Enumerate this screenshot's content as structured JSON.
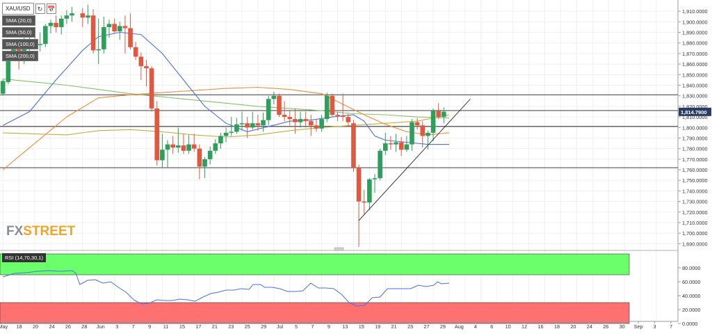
{
  "header": {
    "symbol": "XAU/USD",
    "refresh_icon": "refresh-icon",
    "calendar_icon": "calendar-icon"
  },
  "legend": [
    {
      "label": "SMA (20,0)",
      "color": "#3b5bdb"
    },
    {
      "label": "SMA (50,0)",
      "color": "#f08c3a"
    },
    {
      "label": "SMA (100,0)",
      "color": "#b8a33a"
    },
    {
      "label": "SMA (200,0)",
      "color": "#7fbf5a"
    }
  ],
  "rsi_label": "RSI (14,70,30,1)",
  "watermark": {
    "part1": "FX",
    "part2": "STREET"
  },
  "price_label": "1,814.7900",
  "colors": {
    "up": "#2e9e5b",
    "down": "#e0583f",
    "sma20": "#4a6fe8",
    "sma50": "#f08c3a",
    "sma100": "#c4ae3c",
    "sma200": "#86c266",
    "rsi": "#4a6fe8",
    "overbought": "#6bff6b",
    "oversold": "#ff7070"
  },
  "chart_data": {
    "type": "candlestick",
    "price_axis": {
      "ylim": [
        1685,
        1918
      ],
      "ticks": [
        "1,910.0000",
        "1,900.0000",
        "1,890.0000",
        "1,880.0000",
        "1,870.0000",
        "1,860.0000",
        "1,850.0000",
        "1,840.0000",
        "1,830.0000",
        "1,820.0000",
        "1,810.0000",
        "1,800.0000",
        "1,790.0000",
        "1,780.0000",
        "1,770.0000",
        "1,760.0000",
        "1,750.0000",
        "1,740.0000",
        "1,730.0000",
        "1,720.0000",
        "1,710.0000",
        "1,700.0000",
        "1,690.0000"
      ],
      "tick_values": [
        1910,
        1900,
        1890,
        1880,
        1870,
        1860,
        1850,
        1840,
        1830,
        1820,
        1810,
        1800,
        1790,
        1780,
        1770,
        1760,
        1750,
        1740,
        1730,
        1720,
        1710,
        1700,
        1690
      ]
    },
    "horizontal_lines": [
      1831,
      1816,
      1801,
      1762
    ],
    "x_axis": {
      "labels": [
        "May",
        "18",
        "20",
        "24",
        "26",
        "28",
        "Jun",
        "3",
        "7",
        "9",
        "11",
        "15",
        "17",
        "21",
        "23",
        "25",
        "29",
        "Jul",
        "5",
        "7",
        "9",
        "13",
        "15",
        "19",
        "21",
        "23",
        "27",
        "29",
        "Aug",
        "4",
        "6",
        "10",
        "12",
        "16",
        "18",
        "20",
        "24",
        "26",
        "30",
        "Sep",
        "3",
        "7"
      ],
      "label_pos": [
        0,
        3,
        6,
        9,
        12,
        15,
        18,
        21,
        24,
        27,
        30,
        33,
        36,
        39,
        42,
        45,
        48,
        51,
        54,
        57,
        60,
        63,
        66,
        69,
        72,
        75,
        78,
        81,
        84,
        87,
        90,
        93,
        96,
        99,
        102,
        105,
        108,
        111,
        114,
        117,
        120,
        123
      ],
      "last_candle_pos": 116
    },
    "candles": [
      {
        "pos": 0,
        "o": 1832,
        "h": 1846,
        "l": 1830,
        "c": 1844
      },
      {
        "pos": 1,
        "o": 1843,
        "h": 1869,
        "l": 1841,
        "c": 1867
      },
      {
        "pos": 2,
        "o": 1867,
        "h": 1878,
        "l": 1864,
        "c": 1874
      },
      {
        "pos": 3,
        "o": 1874,
        "h": 1880,
        "l": 1855,
        "c": 1868
      },
      {
        "pos": 4,
        "o": 1868,
        "h": 1885,
        "l": 1860,
        "c": 1877
      },
      {
        "pos": 5,
        "o": 1877,
        "h": 1892,
        "l": 1872,
        "c": 1880
      },
      {
        "pos": 6,
        "o": 1880,
        "h": 1893,
        "l": 1875,
        "c": 1878
      },
      {
        "pos": 7,
        "o": 1878,
        "h": 1890,
        "l": 1872,
        "c": 1879
      },
      {
        "pos": 8,
        "o": 1879,
        "h": 1898,
        "l": 1876,
        "c": 1896
      },
      {
        "pos": 9,
        "o": 1896,
        "h": 1902,
        "l": 1889,
        "c": 1899
      },
      {
        "pos": 10,
        "o": 1899,
        "h": 1906,
        "l": 1890,
        "c": 1895
      },
      {
        "pos": 11,
        "o": 1895,
        "h": 1906,
        "l": 1888,
        "c": 1903
      },
      {
        "pos": 12,
        "o": 1903,
        "h": 1911,
        "l": 1898,
        "c": 1906
      },
      {
        "pos": 13,
        "o": 1906,
        "h": 1914,
        "l": 1900,
        "c": 1908
      },
      {
        "pos": 15,
        "o": 1908,
        "h": 1913,
        "l": 1895,
        "c": 1904
      },
      {
        "pos": 16,
        "o": 1904,
        "h": 1916,
        "l": 1898,
        "c": 1906
      },
      {
        "pos": 17,
        "o": 1906,
        "h": 1912,
        "l": 1870,
        "c": 1873
      },
      {
        "pos": 18,
        "o": 1873,
        "h": 1903,
        "l": 1860,
        "c": 1874
      },
      {
        "pos": 19,
        "o": 1874,
        "h": 1905,
        "l": 1870,
        "c": 1895
      },
      {
        "pos": 20,
        "o": 1895,
        "h": 1902,
        "l": 1885,
        "c": 1898
      },
      {
        "pos": 21,
        "o": 1898,
        "h": 1903,
        "l": 1889,
        "c": 1891
      },
      {
        "pos": 22,
        "o": 1891,
        "h": 1900,
        "l": 1883,
        "c": 1896
      },
      {
        "pos": 23,
        "o": 1896,
        "h": 1906,
        "l": 1870,
        "c": 1894
      },
      {
        "pos": 24,
        "o": 1894,
        "h": 1908,
        "l": 1874,
        "c": 1876
      },
      {
        "pos": 25,
        "o": 1876,
        "h": 1881,
        "l": 1864,
        "c": 1867
      },
      {
        "pos": 26,
        "o": 1867,
        "h": 1871,
        "l": 1845,
        "c": 1858
      },
      {
        "pos": 27,
        "o": 1858,
        "h": 1864,
        "l": 1839,
        "c": 1856
      },
      {
        "pos": 28,
        "o": 1856,
        "h": 1858,
        "l": 1815,
        "c": 1818
      },
      {
        "pos": 29,
        "o": 1818,
        "h": 1825,
        "l": 1764,
        "c": 1769
      },
      {
        "pos": 30,
        "o": 1769,
        "h": 1794,
        "l": 1762,
        "c": 1779
      },
      {
        "pos": 31,
        "o": 1779,
        "h": 1788,
        "l": 1762,
        "c": 1784
      },
      {
        "pos": 32,
        "o": 1784,
        "h": 1792,
        "l": 1775,
        "c": 1781
      },
      {
        "pos": 33,
        "o": 1781,
        "h": 1800,
        "l": 1776,
        "c": 1783
      },
      {
        "pos": 34,
        "o": 1783,
        "h": 1794,
        "l": 1775,
        "c": 1778
      },
      {
        "pos": 35,
        "o": 1778,
        "h": 1793,
        "l": 1775,
        "c": 1784
      },
      {
        "pos": 36,
        "o": 1784,
        "h": 1794,
        "l": 1777,
        "c": 1780
      },
      {
        "pos": 37,
        "o": 1780,
        "h": 1784,
        "l": 1751,
        "c": 1763
      },
      {
        "pos": 38,
        "o": 1763,
        "h": 1772,
        "l": 1752,
        "c": 1770
      },
      {
        "pos": 39,
        "o": 1770,
        "h": 1782,
        "l": 1765,
        "c": 1778
      },
      {
        "pos": 40,
        "o": 1778,
        "h": 1789,
        "l": 1775,
        "c": 1785
      },
      {
        "pos": 41,
        "o": 1785,
        "h": 1795,
        "l": 1780,
        "c": 1792
      },
      {
        "pos": 42,
        "o": 1792,
        "h": 1800,
        "l": 1786,
        "c": 1795
      },
      {
        "pos": 43,
        "o": 1795,
        "h": 1810,
        "l": 1792,
        "c": 1796
      },
      {
        "pos": 44,
        "o": 1796,
        "h": 1809,
        "l": 1794,
        "c": 1803
      },
      {
        "pos": 45,
        "o": 1803,
        "h": 1815,
        "l": 1797,
        "c": 1804
      },
      {
        "pos": 46,
        "o": 1804,
        "h": 1810,
        "l": 1790,
        "c": 1800
      },
      {
        "pos": 47,
        "o": 1800,
        "h": 1815,
        "l": 1798,
        "c": 1804
      },
      {
        "pos": 48,
        "o": 1804,
        "h": 1812,
        "l": 1797,
        "c": 1802
      },
      {
        "pos": 49,
        "o": 1802,
        "h": 1814,
        "l": 1796,
        "c": 1807
      },
      {
        "pos": 50,
        "o": 1807,
        "h": 1830,
        "l": 1802,
        "c": 1827
      },
      {
        "pos": 51,
        "o": 1827,
        "h": 1834,
        "l": 1822,
        "c": 1830
      },
      {
        "pos": 52,
        "o": 1830,
        "h": 1832,
        "l": 1810,
        "c": 1812
      },
      {
        "pos": 53,
        "o": 1812,
        "h": 1825,
        "l": 1806,
        "c": 1810
      },
      {
        "pos": 54,
        "o": 1810,
        "h": 1816,
        "l": 1802,
        "c": 1808
      },
      {
        "pos": 55,
        "o": 1808,
        "h": 1818,
        "l": 1794,
        "c": 1805
      },
      {
        "pos": 56,
        "o": 1805,
        "h": 1815,
        "l": 1800,
        "c": 1808
      },
      {
        "pos": 57,
        "o": 1808,
        "h": 1815,
        "l": 1800,
        "c": 1806
      },
      {
        "pos": 58,
        "o": 1806,
        "h": 1812,
        "l": 1792,
        "c": 1802
      },
      {
        "pos": 59,
        "o": 1802,
        "h": 1808,
        "l": 1796,
        "c": 1799
      },
      {
        "pos": 60,
        "o": 1799,
        "h": 1812,
        "l": 1796,
        "c": 1808
      },
      {
        "pos": 61,
        "o": 1808,
        "h": 1833,
        "l": 1805,
        "c": 1830
      },
      {
        "pos": 62,
        "o": 1830,
        "h": 1832,
        "l": 1810,
        "c": 1812
      },
      {
        "pos": 63,
        "o": 1812,
        "h": 1815,
        "l": 1806,
        "c": 1811
      },
      {
        "pos": 64,
        "o": 1811,
        "h": 1832,
        "l": 1806,
        "c": 1810
      },
      {
        "pos": 65,
        "o": 1810,
        "h": 1813,
        "l": 1801,
        "c": 1805
      },
      {
        "pos": 66,
        "o": 1804,
        "h": 1807,
        "l": 1758,
        "c": 1762
      },
      {
        "pos": 67,
        "o": 1762,
        "h": 1765,
        "l": 1687,
        "c": 1730
      },
      {
        "pos": 68,
        "o": 1730,
        "h": 1741,
        "l": 1718,
        "c": 1729
      },
      {
        "pos": 69,
        "o": 1729,
        "h": 1752,
        "l": 1722,
        "c": 1751
      },
      {
        "pos": 70,
        "o": 1751,
        "h": 1756,
        "l": 1738,
        "c": 1752
      },
      {
        "pos": 71,
        "o": 1752,
        "h": 1780,
        "l": 1750,
        "c": 1778
      },
      {
        "pos": 72,
        "o": 1778,
        "h": 1795,
        "l": 1774,
        "c": 1785
      },
      {
        "pos": 73,
        "o": 1785,
        "h": 1792,
        "l": 1779,
        "c": 1784
      },
      {
        "pos": 74,
        "o": 1784,
        "h": 1794,
        "l": 1777,
        "c": 1786
      },
      {
        "pos": 75,
        "o": 1786,
        "h": 1791,
        "l": 1773,
        "c": 1779
      },
      {
        "pos": 76,
        "o": 1779,
        "h": 1792,
        "l": 1777,
        "c": 1784
      },
      {
        "pos": 77,
        "o": 1784,
        "h": 1808,
        "l": 1778,
        "c": 1805
      },
      {
        "pos": 78,
        "o": 1805,
        "h": 1809,
        "l": 1798,
        "c": 1802
      },
      {
        "pos": 79,
        "o": 1802,
        "h": 1806,
        "l": 1781,
        "c": 1792
      },
      {
        "pos": 80,
        "o": 1792,
        "h": 1797,
        "l": 1779,
        "c": 1795
      },
      {
        "pos": 81,
        "o": 1795,
        "h": 1818,
        "l": 1787,
        "c": 1816
      },
      {
        "pos": 82,
        "o": 1816,
        "h": 1823,
        "l": 1808,
        "c": 1810
      },
      {
        "pos": 83,
        "o": 1810,
        "h": 1819,
        "l": 1804,
        "c": 1815
      }
    ],
    "sma20": [
      [
        0,
        1802
      ],
      [
        5,
        1815
      ],
      [
        10,
        1845
      ],
      [
        15,
        1873
      ],
      [
        18,
        1886
      ],
      [
        22,
        1890
      ],
      [
        26,
        1888
      ],
      [
        30,
        1870
      ],
      [
        34,
        1845
      ],
      [
        38,
        1820
      ],
      [
        42,
        1804
      ],
      [
        46,
        1796
      ],
      [
        50,
        1801
      ],
      [
        54,
        1806
      ],
      [
        58,
        1807
      ],
      [
        62,
        1810
      ],
      [
        66,
        1812
      ],
      [
        68,
        1806
      ],
      [
        70,
        1792
      ],
      [
        72,
        1788
      ],
      [
        76,
        1786
      ],
      [
        80,
        1784
      ],
      [
        84,
        1784
      ]
    ],
    "sma50": [
      [
        0,
        1760
      ],
      [
        6,
        1785
      ],
      [
        12,
        1810
      ],
      [
        18,
        1828
      ],
      [
        24,
        1831
      ],
      [
        30,
        1833
      ],
      [
        36,
        1835
      ],
      [
        42,
        1837
      ],
      [
        48,
        1838
      ],
      [
        54,
        1836
      ],
      [
        60,
        1832
      ],
      [
        64,
        1822
      ],
      [
        68,
        1812
      ],
      [
        72,
        1803
      ],
      [
        76,
        1796
      ],
      [
        80,
        1793
      ],
      [
        84,
        1795
      ]
    ],
    "sma100": [
      [
        0,
        1795
      ],
      [
        6,
        1794
      ],
      [
        12,
        1793
      ],
      [
        18,
        1797
      ],
      [
        24,
        1798
      ],
      [
        30,
        1796
      ],
      [
        36,
        1793
      ],
      [
        42,
        1791
      ],
      [
        48,
        1793
      ],
      [
        54,
        1797
      ],
      [
        60,
        1800
      ],
      [
        66,
        1802
      ],
      [
        72,
        1804
      ],
      [
        78,
        1806
      ],
      [
        84,
        1812
      ]
    ],
    "sma200": [
      [
        0,
        1846
      ],
      [
        6,
        1843
      ],
      [
        12,
        1840
      ],
      [
        18,
        1836
      ],
      [
        24,
        1832
      ],
      [
        30,
        1829
      ],
      [
        36,
        1826
      ],
      [
        42,
        1823
      ],
      [
        48,
        1820
      ],
      [
        54,
        1818
      ],
      [
        60,
        1816
      ],
      [
        66,
        1813
      ],
      [
        72,
        1812
      ],
      [
        78,
        1810
      ],
      [
        84,
        1809
      ]
    ],
    "trendline": [
      [
        67,
        1712
      ],
      [
        88,
        1827
      ]
    ],
    "rsi": {
      "ylim": [
        0,
        100
      ],
      "ticks": [
        "80.0000",
        "60.0000",
        "40.0000",
        "20.0000",
        "0.0000"
      ],
      "tick_values": [
        80,
        60,
        40,
        20,
        0
      ],
      "overbought": 70,
      "oversold": 30,
      "values": [
        [
          0,
          67
        ],
        [
          3,
          72
        ],
        [
          6,
          73
        ],
        [
          9,
          75
        ],
        [
          12,
          76
        ],
        [
          15,
          75
        ],
        [
          18,
          76
        ],
        [
          19,
          72
        ],
        [
          20,
          56
        ],
        [
          22,
          62
        ],
        [
          24,
          63
        ],
        [
          26,
          58
        ],
        [
          28,
          60
        ],
        [
          30,
          52
        ],
        [
          32,
          45
        ],
        [
          34,
          34
        ],
        [
          36,
          28
        ],
        [
          38,
          29
        ],
        [
          40,
          34
        ],
        [
          42,
          33
        ],
        [
          44,
          33
        ],
        [
          46,
          35
        ],
        [
          48,
          34
        ],
        [
          50,
          32
        ],
        [
          52,
          38
        ],
        [
          54,
          43
        ],
        [
          56,
          45
        ],
        [
          58,
          48
        ],
        [
          60,
          48
        ],
        [
          62,
          50
        ],
        [
          64,
          49
        ],
        [
          65,
          56
        ],
        [
          67,
          56
        ],
        [
          68,
          52
        ],
        [
          70,
          52
        ],
        [
          72,
          50
        ],
        [
          74,
          46
        ],
        [
          76,
          46
        ],
        [
          78,
          47
        ],
        [
          80,
          58
        ],
        [
          82,
          51
        ],
        [
          84,
          51
        ],
        [
          86,
          50
        ],
        [
          88,
          42
        ],
        [
          90,
          30
        ],
        [
          92,
          25
        ],
        [
          94,
          26
        ],
        [
          96,
          37
        ],
        [
          98,
          38
        ],
        [
          100,
          50
        ],
        [
          102,
          50
        ],
        [
          104,
          50
        ],
        [
          106,
          50
        ],
        [
          108,
          55
        ],
        [
          110,
          53
        ],
        [
          112,
          55
        ],
        [
          113,
          60
        ],
        [
          114,
          57
        ],
        [
          116,
          58
        ]
      ]
    }
  }
}
